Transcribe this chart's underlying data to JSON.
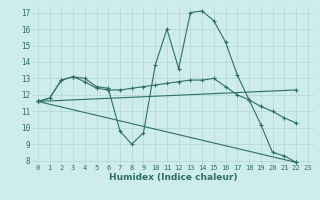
{
  "title": "",
  "xlabel": "Humidex (Indice chaleur)",
  "ylabel": "",
  "bg_color": "#ceecea",
  "grid_color": "#b8dbd8",
  "line_color": "#2e6e6a",
  "xlim": [
    -0.5,
    23.5
  ],
  "ylim": [
    7.8,
    17.4
  ],
  "xticks": [
    0,
    1,
    2,
    3,
    4,
    5,
    6,
    7,
    8,
    9,
    10,
    11,
    12,
    13,
    14,
    15,
    16,
    17,
    18,
    19,
    20,
    21,
    22,
    23
  ],
  "yticks": [
    8,
    9,
    10,
    11,
    12,
    13,
    14,
    15,
    16,
    17
  ],
  "series": [
    {
      "x": [
        0,
        1,
        2,
        3,
        4,
        5,
        6,
        7,
        8,
        9,
        10,
        11,
        12,
        13,
        14,
        15,
        16,
        17,
        18,
        19,
        20,
        21,
        22
      ],
      "y": [
        11.6,
        11.8,
        12.9,
        13.1,
        13.0,
        12.5,
        12.4,
        9.8,
        9.0,
        9.7,
        13.8,
        16.0,
        13.6,
        17.0,
        17.1,
        16.5,
        15.2,
        13.2,
        11.7,
        10.2,
        8.5,
        8.3,
        7.9
      ]
    },
    {
      "x": [
        0,
        1,
        2,
        3,
        4,
        5,
        6,
        7,
        8,
        9,
        10,
        11,
        12,
        13,
        14,
        15,
        16,
        17,
        18,
        19,
        20,
        21,
        22
      ],
      "y": [
        11.6,
        11.8,
        12.9,
        13.1,
        12.8,
        12.4,
        12.3,
        12.3,
        12.4,
        12.5,
        12.6,
        12.7,
        12.8,
        12.9,
        12.9,
        13.0,
        12.5,
        12.0,
        11.7,
        11.3,
        11.0,
        10.6,
        10.3
      ]
    },
    {
      "x": [
        0,
        22
      ],
      "y": [
        11.6,
        7.9
      ]
    },
    {
      "x": [
        0,
        22
      ],
      "y": [
        11.6,
        12.3
      ]
    }
  ]
}
